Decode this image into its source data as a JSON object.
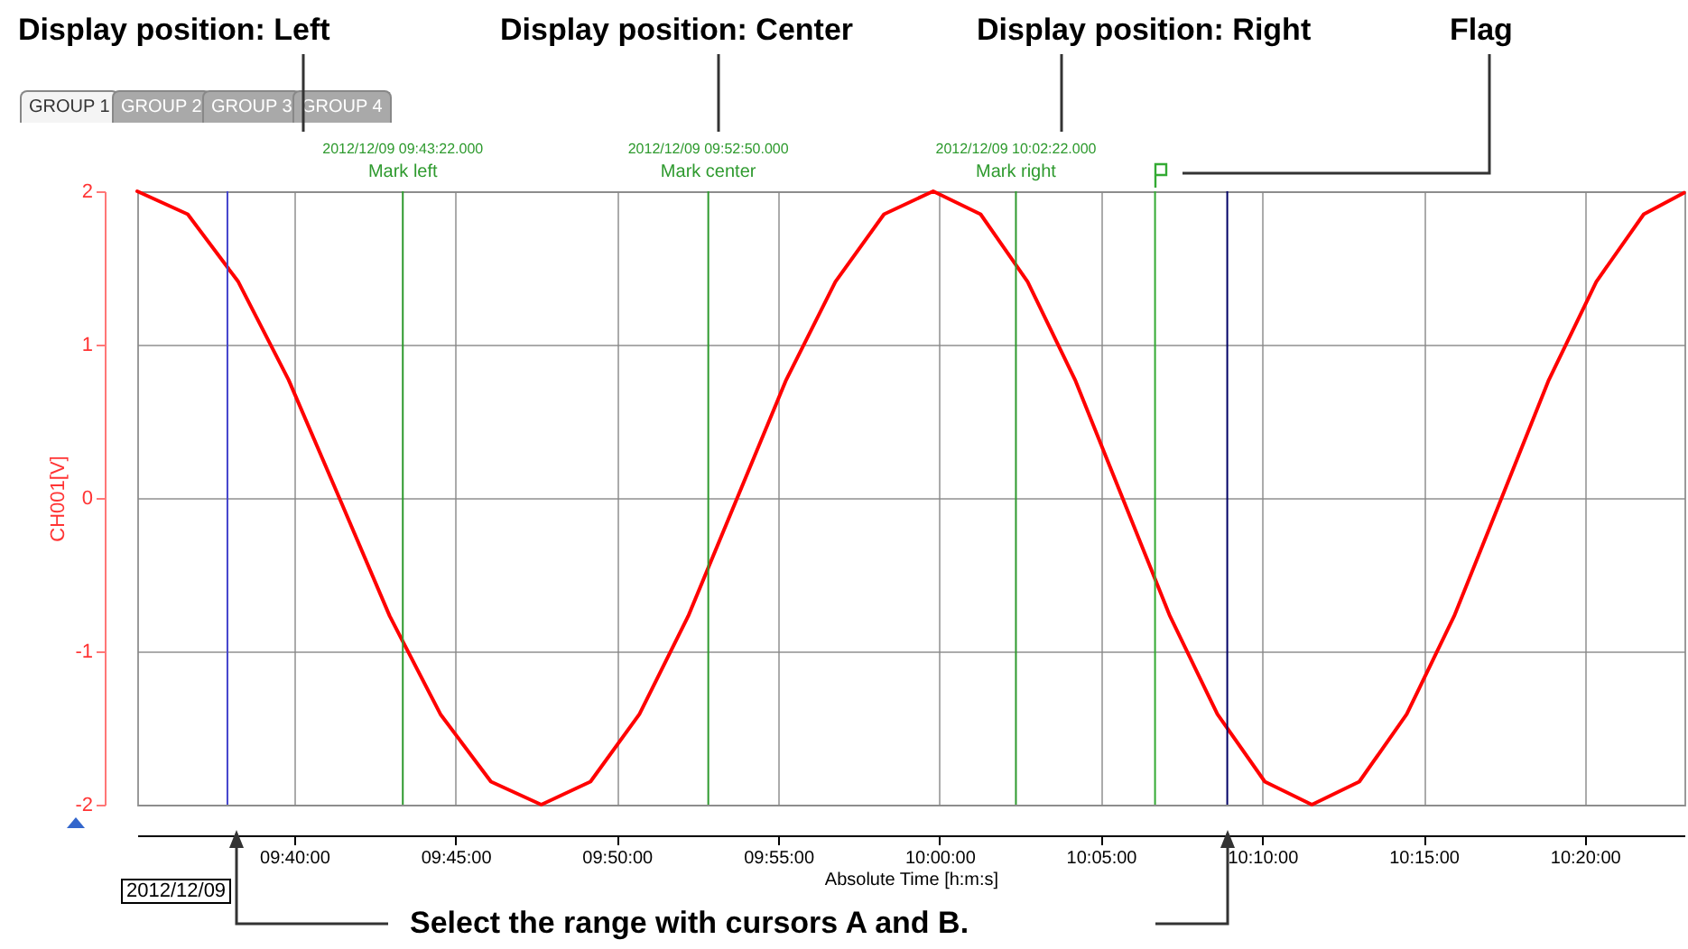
{
  "chart_data": {
    "type": "line",
    "xlabel": "Absolute Time [h:m:s]",
    "ylabel": "CH001[V]",
    "x": [
      9.5856,
      9.6117,
      9.6378,
      9.6638,
      9.69,
      9.716,
      9.7422,
      9.7683,
      9.7943,
      9.8197,
      9.845,
      9.8702,
      9.8955,
      9.9208,
      9.9462,
      9.9713,
      9.9967,
      10.0212,
      10.0455,
      10.07,
      10.0945,
      10.119,
      10.1435,
      10.168,
      10.1923,
      10.2168,
      10.2413,
      10.2658,
      10.2903,
      10.3147,
      10.3392,
      10.3637,
      10.3845
    ],
    "series": [
      {
        "color": "#ff0000",
        "values": [
          2,
          1.85,
          1.41,
          0.77,
          0,
          -0.77,
          -1.41,
          -1.85,
          -2,
          -1.85,
          -1.41,
          -0.77,
          0,
          0.77,
          1.41,
          1.85,
          2,
          1.85,
          1.41,
          0.77,
          0,
          -0.77,
          -1.41,
          -1.85,
          -2,
          -1.85,
          -1.41,
          -0.77,
          0,
          0.77,
          1.41,
          1.85,
          1.99
        ]
      }
    ],
    "xlim": [
      9.5856,
      10.3847
    ],
    "xticks": [
      {
        "value": 9.6667,
        "label": "09:40:00"
      },
      {
        "value": 9.75,
        "label": "09:45:00"
      },
      {
        "value": 9.8333,
        "label": "09:50:00"
      },
      {
        "value": 9.9167,
        "label": "09:55:00"
      },
      {
        "value": 10,
        "label": "10:00:00"
      },
      {
        "value": 10.0833,
        "label": "10:05:00"
      },
      {
        "value": 10.1667,
        "label": "10:10:00"
      },
      {
        "value": 10.25,
        "label": "10:15:00"
      },
      {
        "value": 10.3333,
        "label": "10:20:00"
      }
    ],
    "ylim": [
      -2,
      2
    ],
    "yticks": [
      -2,
      -1,
      0,
      1,
      2
    ],
    "grid": true,
    "ref_lines": [
      {
        "axis": "x",
        "value": 9.722778,
        "label": "Mark left",
        "color": "#2e9a2e"
      },
      {
        "axis": "x",
        "value": 9.880556,
        "label": "Mark center",
        "color": "#2e9a2e"
      },
      {
        "axis": "x",
        "value": 10.039444,
        "label": "Mark right",
        "color": "#2e9a2e"
      },
      {
        "axis": "x",
        "value": 9.6322,
        "color": "#4444cc"
      },
      {
        "axis": "x",
        "value": 10.1486,
        "color": "#000066"
      },
      {
        "axis": "x",
        "value": 10.1113,
        "color": "#33aa33"
      }
    ],
    "annotations": [
      "Display position: Left",
      "Display position: Center",
      "Display position: Right",
      "Flag",
      "Select the range with cursors A and B.",
      "2012/12/09",
      "GROUP 1",
      "GROUP 2",
      "GROUP 3",
      "GROUP 4",
      {
        "text": "2012/12/09 09:43:22.000",
        "x": 9.722778,
        "y": 2
      },
      {
        "text": "2012/12/09 09:52:50.000",
        "x": 9.880556,
        "y": 2
      },
      {
        "text": "2012/12/09 10:02:22.000",
        "x": 10.039444,
        "y": 2
      }
    ]
  }
}
